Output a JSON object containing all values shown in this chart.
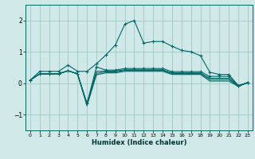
{
  "title": "",
  "xlabel": "Humidex (Indice chaleur)",
  "bg_color": "#d0e8e8",
  "grid_color": "#a0c8c8",
  "line_color": "#006666",
  "xlim": [
    -0.5,
    23.5
  ],
  "ylim": [
    -1.5,
    2.5
  ],
  "xticks": [
    0,
    1,
    2,
    3,
    4,
    5,
    6,
    7,
    8,
    9,
    10,
    11,
    12,
    13,
    14,
    15,
    16,
    17,
    18,
    19,
    20,
    21,
    22,
    23
  ],
  "yticks": [
    -1,
    0,
    1,
    2
  ],
  "lines": [
    {
      "x": [
        0,
        1,
        2,
        3,
        4,
        5,
        6,
        7,
        8,
        9,
        10,
        11,
        12,
        13,
        14,
        15,
        16,
        17,
        18,
        19,
        20,
        21,
        22,
        23
      ],
      "y": [
        0.1,
        0.38,
        0.38,
        0.38,
        0.58,
        0.38,
        0.38,
        0.62,
        0.9,
        1.22,
        1.88,
        2.0,
        1.28,
        1.33,
        1.33,
        1.18,
        1.05,
        1.0,
        0.88,
        0.35,
        0.28,
        0.28,
        -0.07,
        0.02
      ],
      "marker": true
    },
    {
      "x": [
        0,
        1,
        2,
        3,
        4,
        5,
        6,
        7,
        8,
        9,
        10,
        11,
        12,
        13,
        14,
        15,
        16,
        17,
        18,
        19,
        20,
        21,
        22,
        23
      ],
      "y": [
        0.1,
        0.3,
        0.3,
        0.3,
        0.4,
        0.3,
        -0.65,
        0.52,
        0.42,
        0.42,
        0.47,
        0.47,
        0.47,
        0.47,
        0.47,
        0.37,
        0.37,
        0.37,
        0.37,
        0.22,
        0.22,
        0.22,
        -0.08,
        0.02
      ],
      "marker": true
    },
    {
      "x": [
        0,
        1,
        2,
        3,
        4,
        5,
        6,
        7,
        8,
        9,
        10,
        11,
        12,
        13,
        14,
        15,
        16,
        17,
        18,
        19,
        20,
        21,
        22,
        23
      ],
      "y": [
        0.1,
        0.3,
        0.3,
        0.3,
        0.4,
        0.3,
        -0.65,
        0.38,
        0.39,
        0.39,
        0.43,
        0.43,
        0.43,
        0.43,
        0.43,
        0.33,
        0.33,
        0.33,
        0.33,
        0.16,
        0.16,
        0.16,
        -0.09,
        0.02
      ],
      "marker": false
    },
    {
      "x": [
        0,
        1,
        2,
        3,
        4,
        5,
        6,
        7,
        8,
        9,
        10,
        11,
        12,
        13,
        14,
        15,
        16,
        17,
        18,
        19,
        20,
        21,
        22,
        23
      ],
      "y": [
        0.1,
        0.3,
        0.3,
        0.3,
        0.4,
        0.3,
        -0.65,
        0.32,
        0.36,
        0.36,
        0.41,
        0.41,
        0.41,
        0.41,
        0.41,
        0.31,
        0.31,
        0.31,
        0.31,
        0.12,
        0.12,
        0.12,
        -0.09,
        0.02
      ],
      "marker": false
    },
    {
      "x": [
        0,
        1,
        2,
        3,
        4,
        5,
        6,
        7,
        8,
        9,
        10,
        11,
        12,
        13,
        14,
        15,
        16,
        17,
        18,
        19,
        20,
        21,
        22,
        23
      ],
      "y": [
        0.1,
        0.3,
        0.3,
        0.3,
        0.4,
        0.3,
        -0.72,
        0.27,
        0.33,
        0.33,
        0.38,
        0.38,
        0.38,
        0.38,
        0.38,
        0.28,
        0.28,
        0.28,
        0.28,
        0.07,
        0.07,
        0.07,
        -0.1,
        0.02
      ],
      "marker": false
    }
  ]
}
